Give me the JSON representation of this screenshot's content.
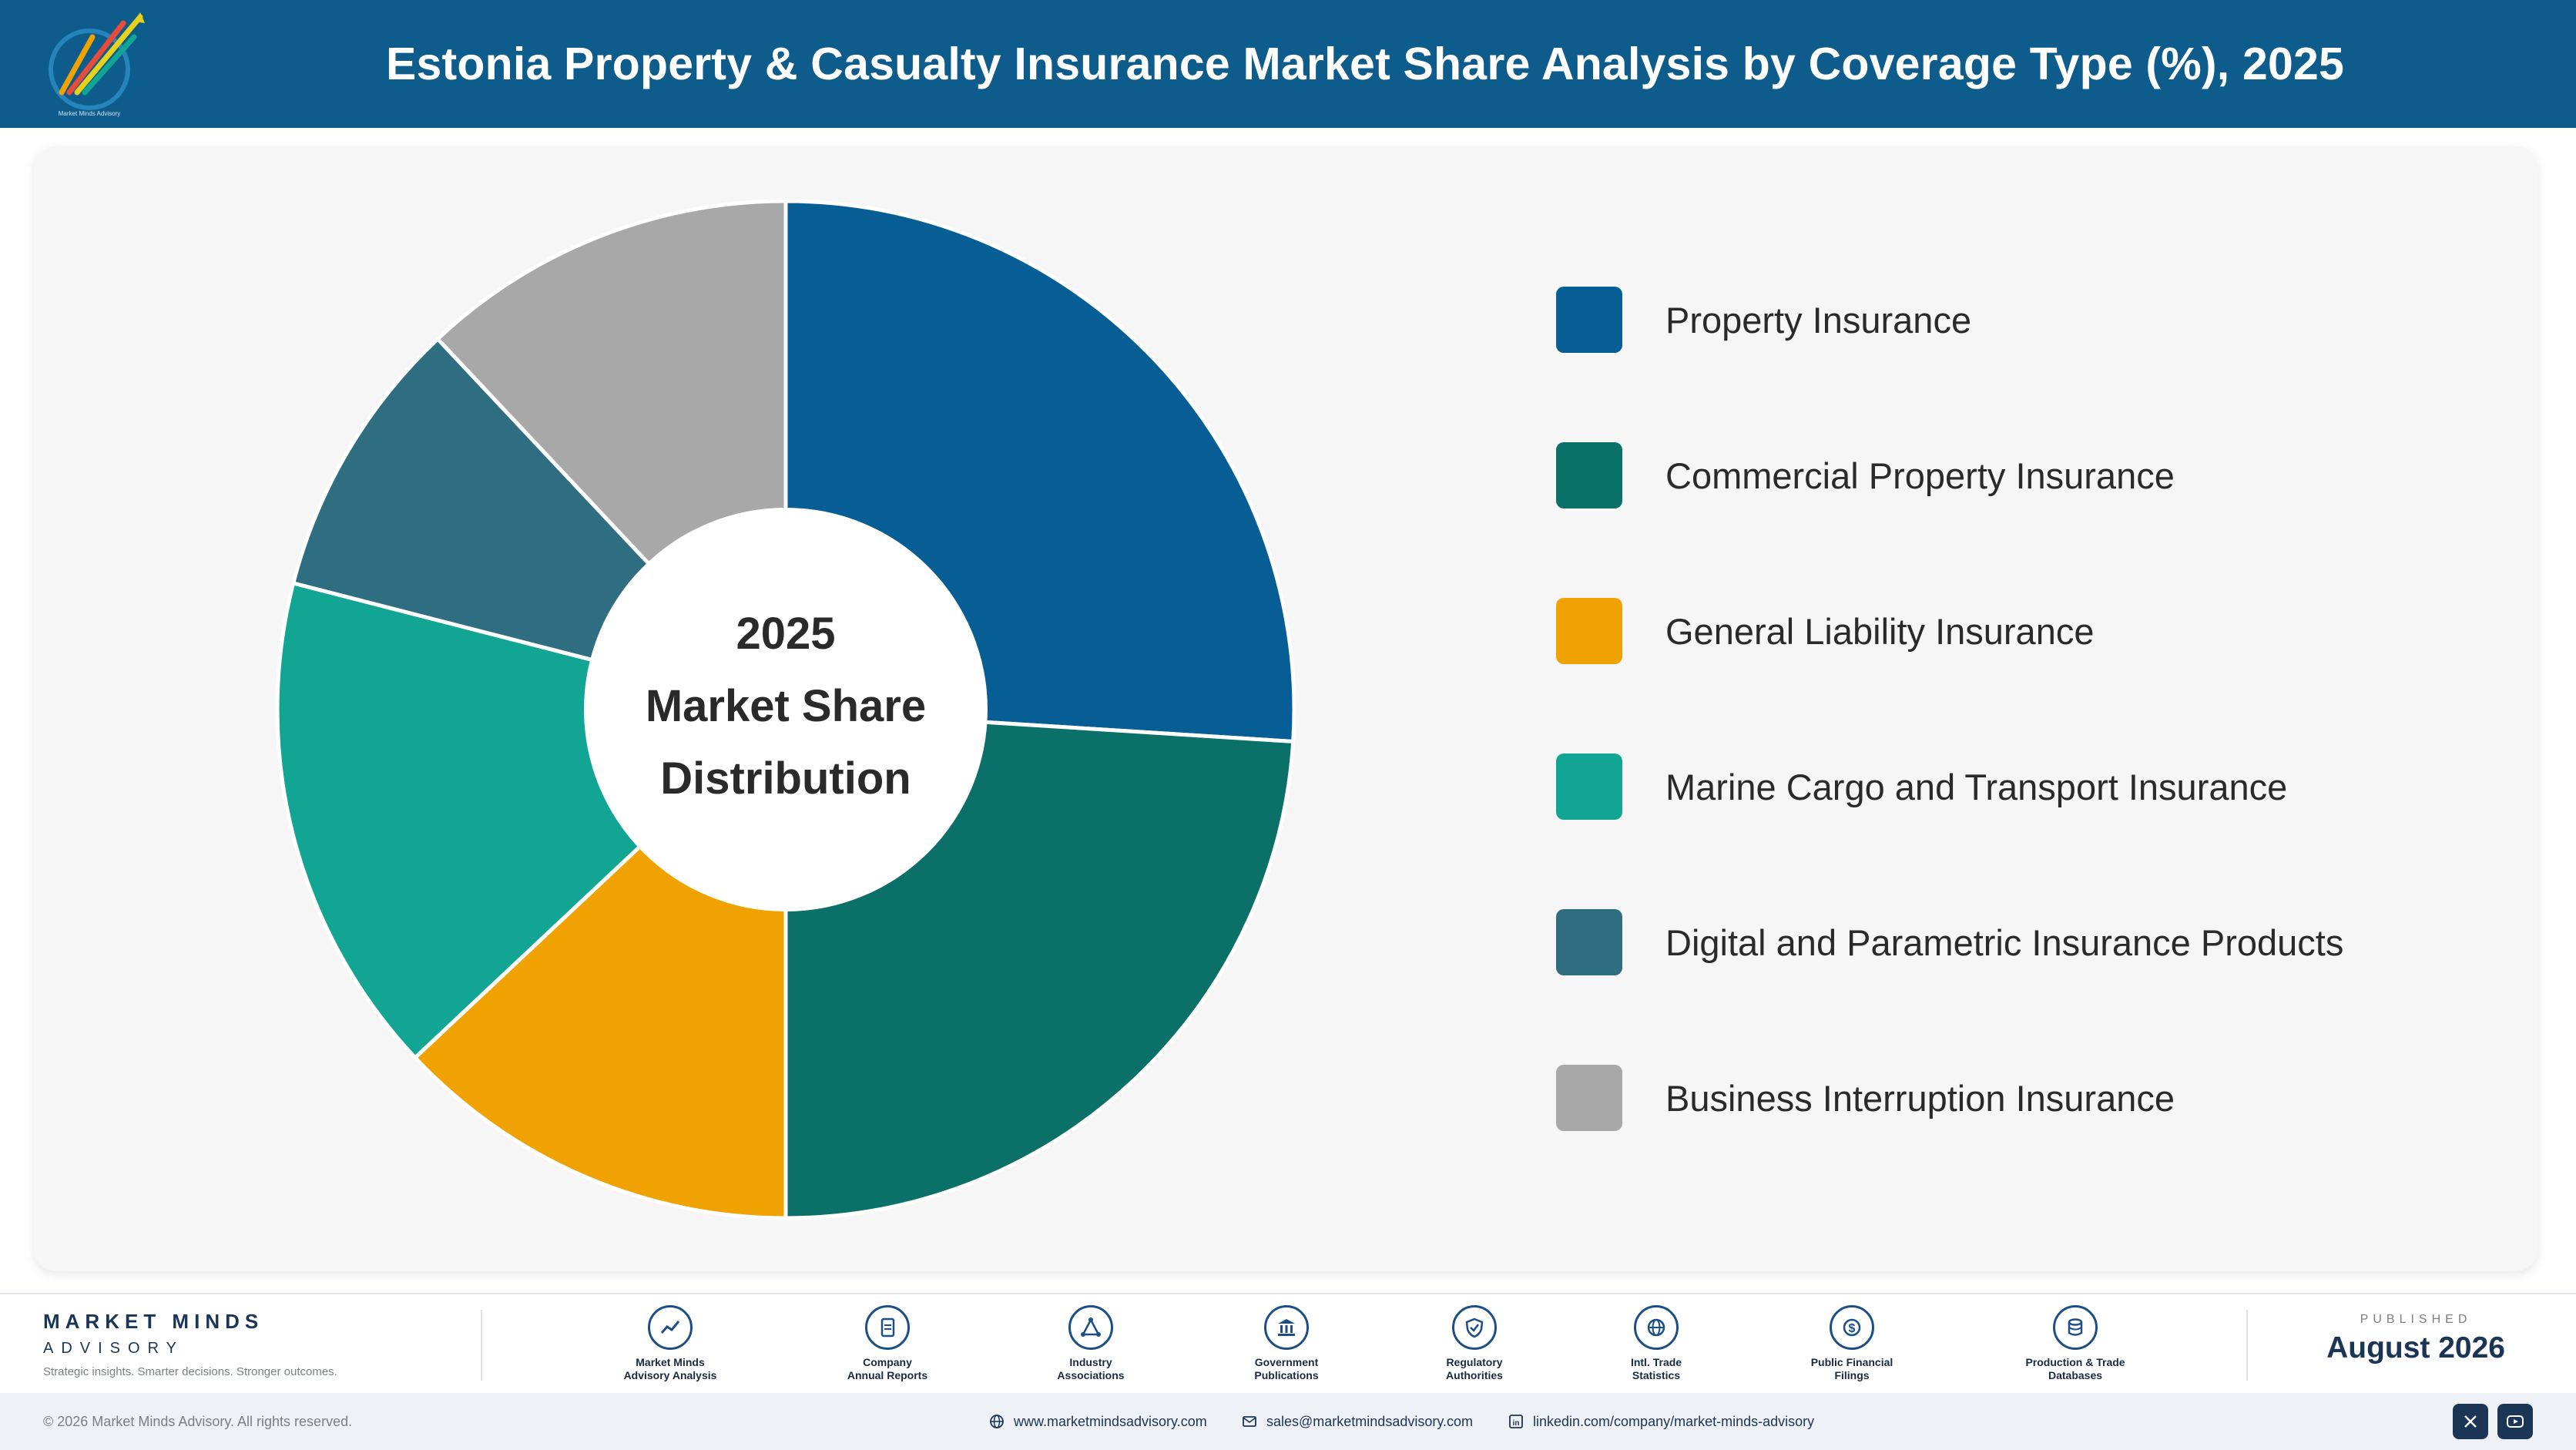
{
  "header": {
    "title": "Estonia Property & Casualty Insurance Market Share Analysis by Coverage Type (%), 2025",
    "logo_text": "Market Minds Advisory"
  },
  "chart_data": {
    "type": "pie",
    "style": "donut",
    "center_text": [
      "2025",
      "Market Share",
      "Distribution"
    ],
    "categories": [
      "Property Insurance",
      "Commercial Property Insurance",
      "General Liability Insurance",
      "Marine Cargo and Transport Insurance",
      "Digital and Parametric Insurance Products",
      "Business Interruption Insurance"
    ],
    "values": [
      26,
      24,
      13,
      16,
      9,
      12
    ],
    "colors": [
      "#075e94",
      "#0b7168",
      "#f0a202",
      "#12a594",
      "#2f6d81",
      "#a8a8a8"
    ],
    "legend_position": "right",
    "data_labels": false
  },
  "footer": {
    "brand_name": "MARKET MINDS",
    "brand_sub": "ADVISORY",
    "tagline": "Strategic insights. Smarter decisions. Stronger outcomes.",
    "sources": [
      {
        "label_line1": "Market Minds",
        "label_line2": "Advisory Analysis",
        "icon": "trend-icon"
      },
      {
        "label_line1": "Company",
        "label_line2": "Annual Reports",
        "icon": "document-icon"
      },
      {
        "label_line1": "Industry",
        "label_line2": "Associations",
        "icon": "network-icon"
      },
      {
        "label_line1": "Government",
        "label_line2": "Publications",
        "icon": "government-icon"
      },
      {
        "label_line1": "Regulatory",
        "label_line2": "Authorities",
        "icon": "shield-icon"
      },
      {
        "label_line1": "Intl. Trade",
        "label_line2": "Statistics",
        "icon": "globe-icon"
      },
      {
        "label_line1": "Public Financial",
        "label_line2": "Filings",
        "icon": "dollar-icon"
      },
      {
        "label_line1": "Production & Trade",
        "label_line2": "Databases",
        "icon": "database-icon"
      }
    ],
    "published_label": "PUBLISHED",
    "published_date": "August 2026"
  },
  "bottombar": {
    "copyright": "© 2026 Market Minds Advisory. All rights reserved.",
    "website": "www.marketmindsadvisory.com",
    "email": "sales@marketmindsadvisory.com",
    "linkedin": "linkedin.com/company/market-minds-advisory",
    "social": [
      "x-icon",
      "youtube-icon"
    ]
  }
}
